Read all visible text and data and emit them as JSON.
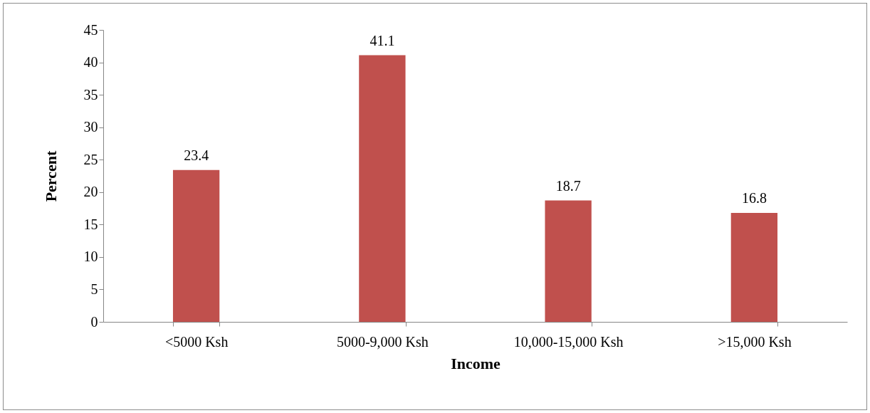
{
  "chart_data": {
    "type": "bar",
    "xlabel": "Income",
    "ylabel": "Percent",
    "categories": [
      "<5000 Ksh",
      "5000-9,000 Ksh",
      "10,000-15,000 Ksh",
      ">15,000 Ksh"
    ],
    "values": [
      23.4,
      41.1,
      18.7,
      16.8
    ],
    "color": "#c0504d",
    "ylim": [
      0,
      45
    ],
    "yticks": [
      0,
      5,
      10,
      15,
      20,
      25,
      30,
      35,
      40,
      45
    ],
    "grid": false,
    "data_labels": true
  }
}
